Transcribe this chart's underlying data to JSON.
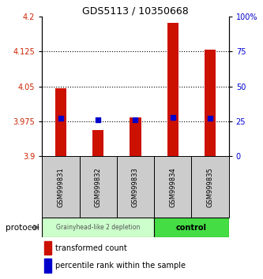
{
  "title": "GDS5113 / 10350668",
  "samples": [
    "GSM999831",
    "GSM999832",
    "GSM999833",
    "GSM999834",
    "GSM999835"
  ],
  "red_bar_values": [
    4.046,
    3.956,
    3.984,
    4.186,
    4.13
  ],
  "blue_dot_values": [
    27,
    26,
    26,
    28,
    27
  ],
  "ylim_left": [
    3.9,
    4.2
  ],
  "ylim_right": [
    0,
    100
  ],
  "left_ticks": [
    3.9,
    3.975,
    4.05,
    4.125,
    4.2
  ],
  "right_ticks": [
    0,
    25,
    50,
    75,
    100
  ],
  "right_tick_labels": [
    "0",
    "25",
    "50",
    "75",
    "100%"
  ],
  "bar_base": 3.9,
  "bar_color": "#cc1100",
  "dot_color": "#0000cc",
  "group1_label": "Grainyhead-like 2 depletion",
  "group2_label": "control",
  "group1_color": "#ccffcc",
  "group2_color": "#44dd44",
  "protocol_label": "protocol",
  "legend_red_label": "transformed count",
  "legend_blue_label": "percentile rank within the sample",
  "tick_label_color_left": "#cc2200",
  "tick_label_color_right": "#0000cc",
  "sample_box_color": "#cccccc",
  "bar_width": 0.3,
  "title_fontsize": 9
}
